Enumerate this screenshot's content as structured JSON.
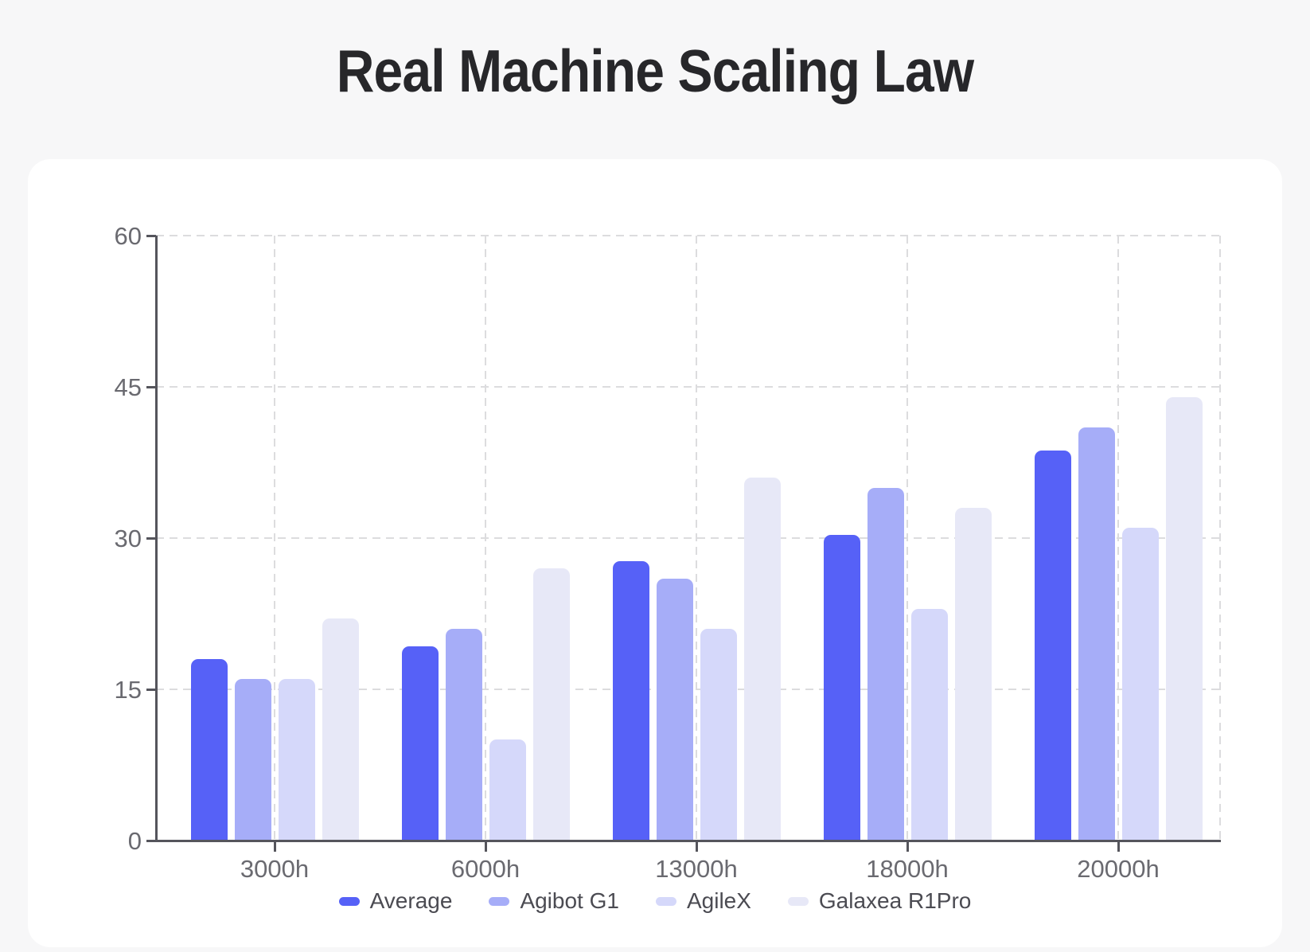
{
  "chart": {
    "title": "Real Machine Scaling Law"
  },
  "chart_data": {
    "type": "bar",
    "title": "Real Machine Scaling Law",
    "categories": [
      "3000h",
      "6000h",
      "13000h",
      "18000h",
      "20000h"
    ],
    "series": [
      {
        "name": "Average",
        "color": "#5661F7",
        "values": [
          18,
          19.3,
          27.7,
          30.3,
          38.7
        ]
      },
      {
        "name": "Agibot G1",
        "color": "#A6ADF8",
        "values": [
          16,
          21,
          26,
          35,
          41
        ]
      },
      {
        "name": "AgileX",
        "color": "#D5D8FA",
        "values": [
          16,
          10,
          21,
          23,
          31
        ]
      },
      {
        "name": "Galaxea R1Pro",
        "color": "#E7E8F7",
        "values": [
          22,
          27,
          36,
          33,
          44
        ]
      }
    ],
    "xlabel": "",
    "ylabel": "",
    "ylim": [
      0,
      60
    ],
    "yticks": [
      0,
      15,
      30,
      45,
      60
    ],
    "grid": {
      "show": true,
      "style": "dashed",
      "color": "#DCDCDE",
      "horizontal": true,
      "vertical": true
    },
    "legend": {
      "position": "bottom",
      "labels": [
        "Average",
        "Agibot G1",
        "AgileX",
        "Galaxea R1Pro"
      ]
    },
    "colors": {
      "axis": "#55555C",
      "tick_label": "#6A6A70",
      "title": "#27272A",
      "page_background": "#F7F7F8",
      "card_background": "#FFFFFF"
    }
  }
}
